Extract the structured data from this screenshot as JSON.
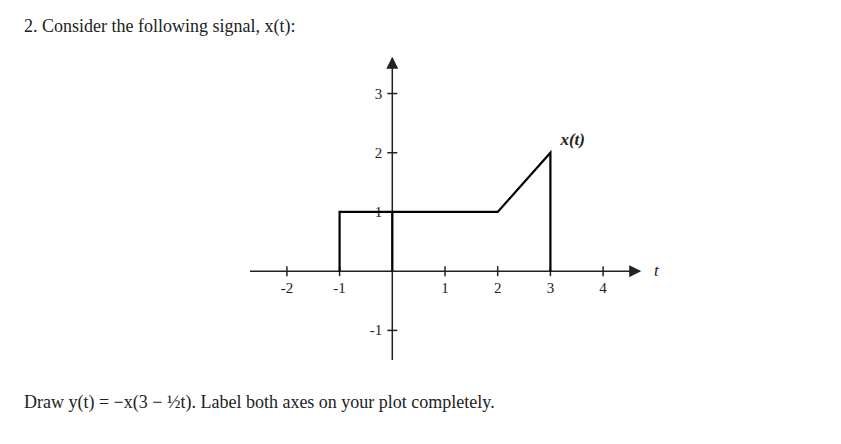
{
  "chart_data": {
    "type": "line",
    "title": "2.  Consider the following signal, x(t):",
    "x_label": "t",
    "series": [
      {
        "name": "x(t)",
        "color": "#000000",
        "x": [
          -1,
          -1,
          2,
          3,
          3
        ],
        "values": [
          0,
          1,
          1,
          2,
          0
        ]
      },
      {
        "color": "#000000",
        "x": [
          0,
          0
        ],
        "values": [
          0,
          1
        ]
      }
    ],
    "xlim": [
      -2.7,
      4.7
    ],
    "ylim": [
      -1.5,
      3.6
    ],
    "xticks": [
      -2,
      -1,
      1,
      2,
      3,
      4
    ],
    "yticks": [
      -1,
      1,
      2,
      3
    ],
    "grid": false,
    "annotations": [
      "Draw y(t) = −x(3 − ½t).  Label both axes on your plot completely."
    ]
  }
}
